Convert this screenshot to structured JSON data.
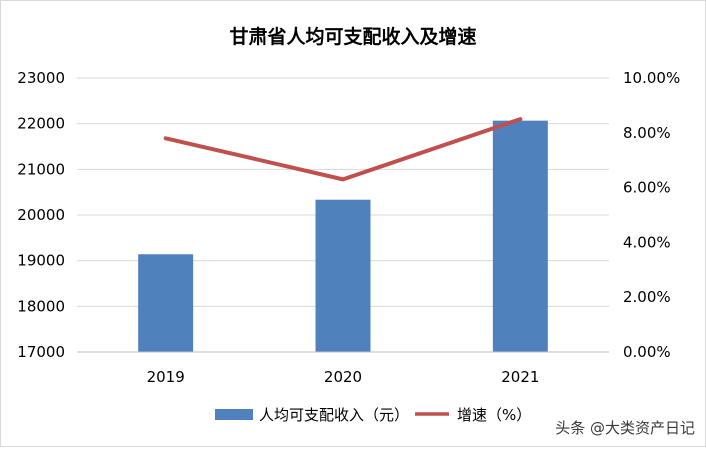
{
  "chart_data": {
    "type": "bar",
    "title": "甘肃省人均可支配收入及增速",
    "categories": [
      "2019",
      "2020",
      "2021"
    ],
    "series": [
      {
        "name": "人均可支配收入（元）",
        "type": "bar",
        "axis": "left",
        "color": "#4f81bd",
        "values": [
          19140,
          20335,
          22066
        ]
      },
      {
        "name": "增速（%）",
        "type": "line",
        "axis": "right",
        "color": "#c0504d",
        "values": [
          7.8,
          6.3,
          8.5
        ]
      }
    ],
    "y_left": {
      "min": 17000,
      "max": 23000,
      "step": 1000,
      "tick_labels": [
        "17000",
        "18000",
        "19000",
        "20000",
        "21000",
        "22000",
        "23000"
      ]
    },
    "y_right": {
      "min": 0,
      "max": 10,
      "step": 2,
      "tick_labels": [
        "0.00%",
        "2.00%",
        "4.00%",
        "6.00%",
        "8.00%",
        "10.00%"
      ]
    },
    "grid": true,
    "legend": "bottom"
  },
  "watermark": "头条 @大类资产日记"
}
